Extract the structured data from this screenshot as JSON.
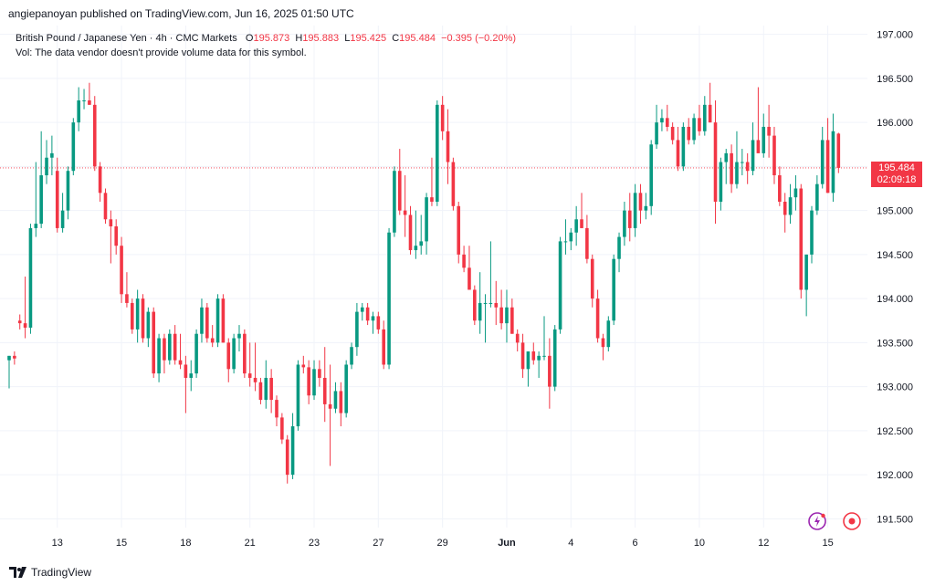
{
  "header": {
    "publisher_line": "angiepanoyan published on TradingView.com, Jun 16, 2025 01:50 UTC"
  },
  "legend": {
    "symbol_line": "British Pound / Japanese Yen · 4h · CMC Markets",
    "o_label": "O",
    "o_value": "195.873",
    "h_label": "H",
    "h_value": "195.883",
    "l_label": "L",
    "l_value": "195.425",
    "c_label": "C",
    "c_value": "195.484",
    "change": "−0.395 (−0.20%)",
    "vol_line": "Vol: The data vendor doesn't provide volume data for this symbol."
  },
  "price_tag": {
    "price": "195.484",
    "countdown": "02:09:18"
  },
  "footer": {
    "brand": "TradingView"
  },
  "colors": {
    "up": "#089981",
    "down": "#f23645",
    "grid": "#f0f3fa",
    "axis_text": "#131722"
  },
  "icons": [
    "lightning-icon",
    "record-icon",
    "tradingview-logo-icon"
  ],
  "chart_data": {
    "type": "candlestick",
    "title": "British Pound / Japanese Yen · 4h · CMC Markets",
    "ylim": [
      191.4,
      197.1
    ],
    "y_ticks": [
      "197.000",
      "196.500",
      "196.000",
      "195.500",
      "195.000",
      "194.500",
      "194.000",
      "193.500",
      "193.000",
      "192.500",
      "192.000",
      "191.500"
    ],
    "x_ticks": [
      "13",
      "15",
      "18",
      "21",
      "23",
      "27",
      "29",
      "Jun",
      "4",
      "6",
      "10",
      "12",
      "15"
    ],
    "x_tick_index": [
      9,
      21,
      33,
      45,
      57,
      69,
      81,
      93,
      105,
      117,
      129,
      141,
      153
    ],
    "last_price": 195.484,
    "grid": true,
    "candles": [
      [
        193.3,
        193.35,
        192.98,
        193.35
      ],
      [
        193.35,
        193.4,
        193.25,
        193.32
      ],
      [
        193.75,
        193.82,
        193.65,
        193.72
      ],
      [
        193.72,
        194.25,
        193.55,
        193.67
      ],
      [
        193.67,
        194.85,
        193.6,
        194.8
      ],
      [
        194.8,
        195.55,
        194.7,
        194.85
      ],
      [
        194.85,
        195.9,
        194.8,
        195.4
      ],
      [
        195.4,
        195.8,
        195.3,
        195.6
      ],
      [
        195.6,
        195.85,
        195.4,
        195.65
      ],
      [
        195.45,
        195.6,
        194.75,
        194.8
      ],
      [
        194.8,
        195.2,
        194.75,
        195.0
      ],
      [
        195.0,
        195.5,
        194.9,
        195.45
      ],
      [
        195.45,
        196.05,
        195.4,
        196.0
      ],
      [
        196.0,
        196.4,
        195.9,
        196.25
      ],
      [
        196.25,
        196.38,
        196.15,
        196.25
      ],
      [
        196.25,
        196.45,
        196.2,
        196.2
      ],
      [
        196.2,
        196.3,
        195.45,
        195.5
      ],
      [
        195.5,
        195.55,
        195.1,
        195.2
      ],
      [
        195.2,
        195.25,
        194.85,
        194.9
      ],
      [
        194.9,
        195.0,
        194.4,
        194.82
      ],
      [
        194.82,
        194.9,
        194.5,
        194.6
      ],
      [
        194.6,
        194.7,
        193.95,
        194.05
      ],
      [
        194.05,
        194.3,
        193.9,
        193.95
      ],
      [
        193.95,
        194.0,
        193.6,
        193.65
      ],
      [
        193.65,
        194.1,
        193.5,
        194.0
      ],
      [
        194.0,
        194.05,
        193.5,
        193.55
      ],
      [
        193.55,
        193.9,
        193.45,
        193.85
      ],
      [
        193.85,
        193.9,
        193.1,
        193.15
      ],
      [
        193.15,
        193.6,
        193.05,
        193.55
      ],
      [
        193.55,
        193.6,
        193.15,
        193.3
      ],
      [
        193.3,
        193.65,
        193.25,
        193.6
      ],
      [
        193.6,
        193.7,
        193.25,
        193.3
      ],
      [
        193.3,
        193.6,
        193.2,
        193.25
      ],
      [
        193.25,
        193.35,
        192.7,
        193.1
      ],
      [
        193.1,
        193.3,
        192.95,
        193.15
      ],
      [
        193.15,
        193.65,
        193.1,
        193.6
      ],
      [
        193.6,
        194.0,
        193.5,
        193.9
      ],
      [
        193.9,
        193.95,
        193.5,
        193.55
      ],
      [
        193.55,
        193.7,
        193.45,
        193.5
      ],
      [
        193.5,
        194.05,
        193.45,
        194.0
      ],
      [
        194.0,
        194.05,
        193.5,
        193.5
      ],
      [
        193.5,
        193.55,
        193.05,
        193.2
      ],
      [
        193.2,
        193.6,
        193.15,
        193.55
      ],
      [
        193.55,
        193.7,
        193.4,
        193.6
      ],
      [
        193.6,
        193.65,
        193.1,
        193.15
      ],
      [
        193.15,
        193.5,
        193.0,
        193.1
      ],
      [
        193.1,
        193.5,
        192.95,
        193.05
      ],
      [
        193.05,
        193.1,
        192.8,
        192.85
      ],
      [
        192.85,
        193.3,
        192.75,
        193.1
      ],
      [
        193.1,
        193.2,
        192.7,
        192.85
      ],
      [
        192.85,
        192.9,
        192.55,
        192.65
      ],
      [
        192.65,
        192.7,
        192.35,
        192.4
      ],
      [
        192.4,
        192.45,
        191.9,
        192.0
      ],
      [
        192.0,
        192.7,
        191.95,
        192.55
      ],
      [
        192.55,
        193.3,
        192.5,
        193.25
      ],
      [
        193.25,
        193.35,
        193.15,
        193.22
      ],
      [
        193.22,
        193.3,
        192.8,
        192.9
      ],
      [
        192.9,
        193.3,
        192.85,
        193.2
      ],
      [
        193.2,
        193.3,
        193.0,
        193.1
      ],
      [
        193.1,
        193.45,
        192.6,
        192.8
      ],
      [
        192.8,
        193.25,
        192.1,
        192.75
      ],
      [
        192.75,
        193.05,
        192.7,
        192.95
      ],
      [
        192.95,
        193.05,
        192.55,
        192.7
      ],
      [
        192.7,
        193.3,
        192.65,
        193.25
      ],
      [
        193.25,
        193.5,
        193.2,
        193.45
      ],
      [
        193.45,
        193.95,
        193.35,
        193.85
      ],
      [
        193.85,
        193.95,
        193.75,
        193.9
      ],
      [
        193.9,
        193.95,
        193.7,
        193.75
      ],
      [
        193.75,
        193.85,
        193.6,
        193.8
      ],
      [
        193.8,
        193.85,
        193.6,
        193.65
      ],
      [
        193.65,
        193.75,
        193.2,
        193.25
      ],
      [
        193.25,
        194.8,
        193.2,
        194.75
      ],
      [
        194.75,
        195.5,
        194.7,
        195.45
      ],
      [
        195.45,
        195.7,
        194.95,
        195.0
      ],
      [
        195.0,
        195.4,
        194.7,
        194.95
      ],
      [
        194.95,
        195.05,
        194.5,
        194.55
      ],
      [
        194.55,
        195.0,
        194.45,
        194.6
      ],
      [
        194.6,
        194.95,
        194.5,
        194.65
      ],
      [
        194.65,
        195.2,
        194.5,
        195.15
      ],
      [
        195.15,
        195.6,
        195.05,
        195.1
      ],
      [
        195.1,
        196.25,
        195.05,
        196.2
      ],
      [
        196.2,
        196.3,
        195.8,
        195.9
      ],
      [
        195.9,
        196.15,
        195.3,
        195.55
      ],
      [
        195.55,
        195.6,
        195.0,
        195.05
      ],
      [
        195.05,
        195.1,
        194.4,
        194.5
      ],
      [
        194.5,
        194.6,
        194.3,
        194.35
      ],
      [
        194.35,
        194.6,
        194.1,
        194.1
      ],
      [
        194.1,
        194.15,
        193.7,
        193.75
      ],
      [
        193.75,
        194.3,
        193.6,
        193.95
      ],
      [
        193.95,
        194.05,
        193.5,
        193.95
      ],
      [
        193.95,
        194.65,
        193.9,
        193.95
      ],
      [
        193.95,
        194.2,
        193.7,
        193.9
      ],
      [
        193.9,
        194.1,
        193.65,
        193.72
      ],
      [
        193.72,
        194.1,
        193.5,
        193.9
      ],
      [
        193.9,
        194.0,
        193.6,
        193.6
      ],
      [
        193.6,
        193.65,
        193.4,
        193.5
      ],
      [
        193.5,
        193.6,
        193.1,
        193.2
      ],
      [
        193.2,
        193.4,
        193.0,
        193.4
      ],
      [
        193.4,
        193.5,
        193.25,
        193.3
      ],
      [
        193.3,
        193.4,
        193.1,
        193.35
      ],
      [
        193.35,
        193.8,
        193.3,
        193.35
      ],
      [
        193.35,
        193.55,
        192.75,
        193.0
      ],
      [
        193.0,
        193.7,
        192.95,
        193.65
      ],
      [
        193.65,
        194.7,
        193.6,
        194.65
      ],
      [
        194.65,
        194.9,
        194.5,
        194.65
      ],
      [
        194.65,
        194.8,
        194.55,
        194.75
      ],
      [
        194.75,
        195.05,
        194.6,
        194.9
      ],
      [
        194.9,
        195.2,
        194.8,
        194.8
      ],
      [
        194.8,
        194.95,
        194.4,
        194.45
      ],
      [
        194.45,
        194.5,
        193.9,
        194.0
      ],
      [
        194.0,
        194.1,
        193.5,
        193.55
      ],
      [
        193.55,
        193.6,
        193.3,
        193.45
      ],
      [
        193.45,
        193.8,
        193.4,
        193.75
      ],
      [
        193.75,
        194.5,
        193.7,
        194.45
      ],
      [
        194.45,
        194.75,
        194.3,
        194.7
      ],
      [
        194.7,
        195.1,
        194.6,
        195.0
      ],
      [
        195.0,
        195.2,
        194.65,
        194.8
      ],
      [
        194.8,
        195.3,
        194.7,
        195.2
      ],
      [
        195.2,
        195.3,
        194.85,
        195.0
      ],
      [
        195.0,
        195.2,
        194.9,
        195.05
      ],
      [
        195.05,
        195.8,
        194.95,
        195.75
      ],
      [
        195.75,
        196.2,
        195.7,
        196.0
      ],
      [
        196.0,
        196.15,
        195.9,
        196.05
      ],
      [
        196.05,
        196.2,
        195.9,
        195.95
      ],
      [
        195.95,
        196.0,
        195.75,
        195.8
      ],
      [
        195.8,
        195.95,
        195.45,
        195.5
      ],
      [
        195.5,
        196.0,
        195.45,
        195.95
      ],
      [
        195.95,
        196.05,
        195.75,
        195.8
      ],
      [
        195.8,
        196.1,
        195.75,
        196.05
      ],
      [
        196.05,
        196.2,
        195.85,
        195.9
      ],
      [
        195.9,
        196.3,
        195.85,
        196.2
      ],
      [
        196.2,
        196.45,
        196.0,
        196.0
      ],
      [
        196.0,
        196.25,
        194.85,
        195.1
      ],
      [
        195.1,
        195.6,
        195.0,
        195.55
      ],
      [
        195.55,
        195.7,
        195.3,
        195.65
      ],
      [
        195.65,
        195.75,
        195.2,
        195.3
      ],
      [
        195.3,
        195.9,
        195.25,
        195.55
      ],
      [
        195.55,
        195.7,
        195.4,
        195.55
      ],
      [
        195.55,
        195.65,
        195.3,
        195.45
      ],
      [
        195.45,
        196.0,
        195.4,
        195.8
      ],
      [
        195.8,
        196.4,
        195.7,
        195.65
      ],
      [
        195.65,
        196.1,
        195.6,
        195.95
      ],
      [
        195.95,
        196.2,
        195.6,
        195.85
      ],
      [
        195.85,
        195.95,
        195.3,
        195.4
      ],
      [
        195.4,
        195.5,
        195.05,
        195.1
      ],
      [
        195.1,
        195.2,
        194.75,
        194.95
      ],
      [
        194.95,
        195.3,
        194.85,
        195.15
      ],
      [
        195.15,
        195.4,
        195.0,
        195.25
      ],
      [
        195.25,
        195.3,
        194.0,
        194.1
      ],
      [
        194.1,
        194.5,
        193.8,
        194.5
      ],
      [
        194.5,
        195.05,
        194.4,
        195.0
      ],
      [
        195.0,
        195.4,
        194.95,
        195.3
      ],
      [
        195.3,
        195.95,
        195.25,
        195.8
      ],
      [
        195.8,
        196.05,
        195.2,
        195.2
      ],
      [
        195.2,
        196.1,
        195.1,
        195.9
      ],
      [
        195.873,
        195.883,
        195.425,
        195.484
      ]
    ]
  }
}
